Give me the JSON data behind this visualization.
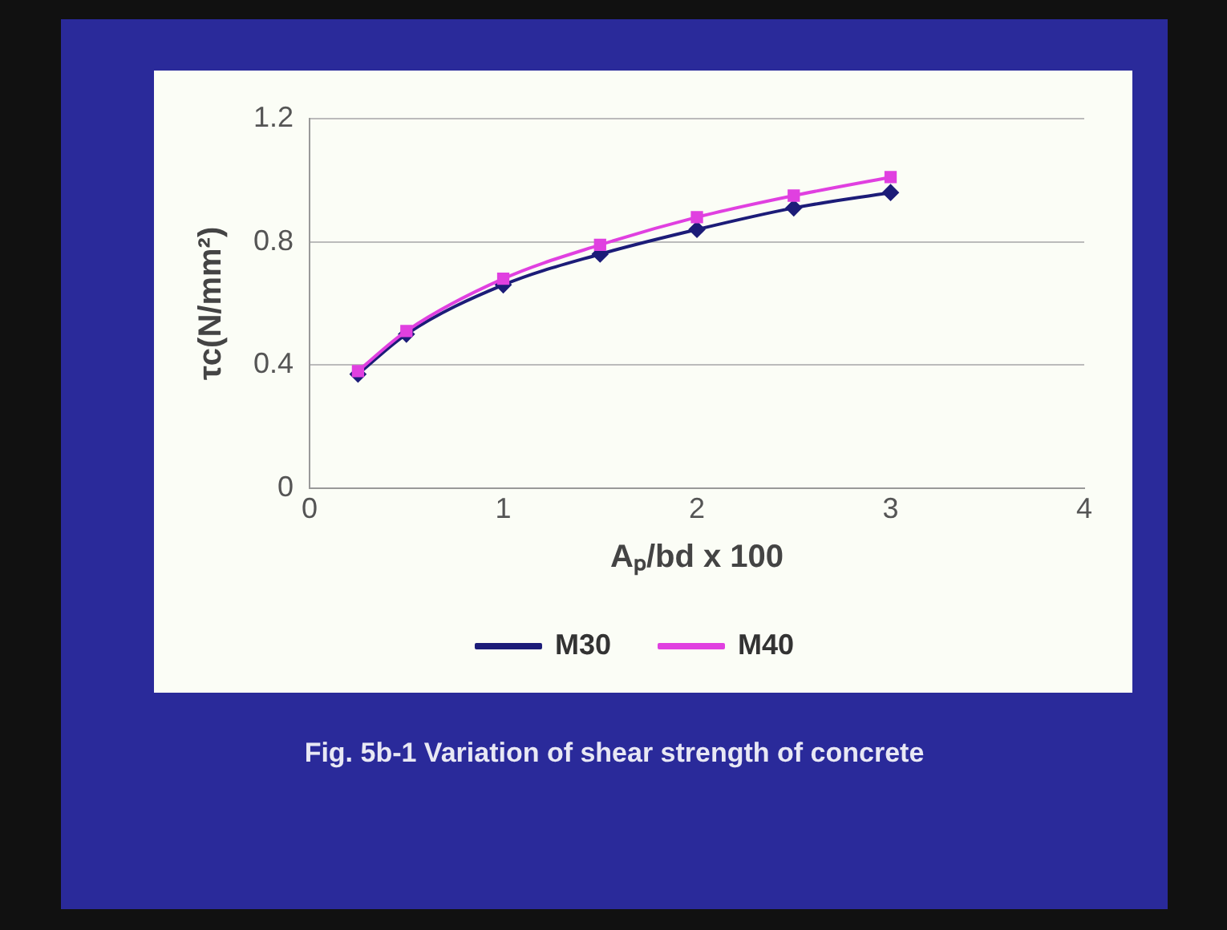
{
  "chart_data": {
    "type": "line",
    "xlabel": "Aₚ/bd x 100",
    "ylabel": "τc(N/mm²)",
    "annotations": [
      "Fig. 5b-1 Variation of shear strength of concrete"
    ],
    "x": [
      0.25,
      0.5,
      1,
      1.5,
      2,
      2.5,
      3
    ],
    "series": [
      {
        "name": "M30",
        "color": "#1c1c78",
        "marker": "diamond",
        "values": [
          0.37,
          0.5,
          0.66,
          0.76,
          0.84,
          0.91,
          0.96
        ]
      },
      {
        "name": "M40",
        "color": "#e040e0",
        "marker": "square",
        "values": [
          0.38,
          0.51,
          0.68,
          0.79,
          0.88,
          0.95,
          1.01
        ]
      }
    ],
    "xlim": [
      0,
      4
    ],
    "xticks": [
      0,
      1,
      2,
      3,
      4
    ],
    "ylim": [
      0,
      1.2
    ],
    "yticks": [
      0,
      0.4,
      0.8,
      1.2
    ],
    "grid": "y",
    "legend": "bottom",
    "line_style": "solid"
  }
}
